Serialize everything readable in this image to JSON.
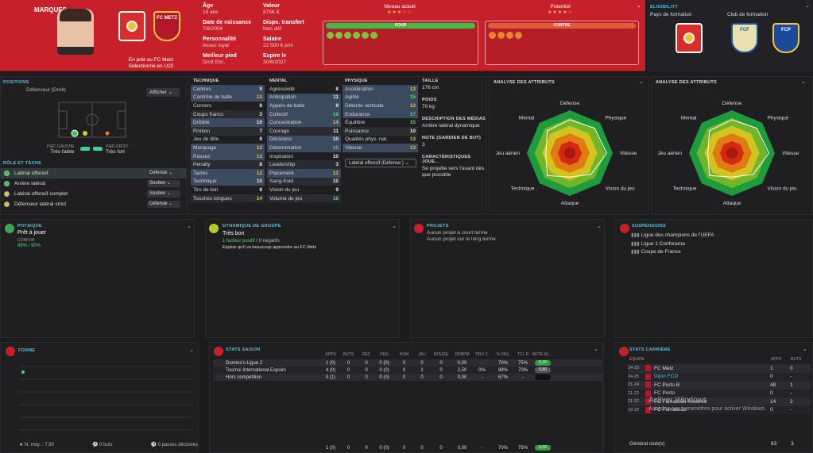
{
  "player": {
    "name": "MARQUES",
    "age_label": "Âge",
    "age": "19 ans",
    "dob_label": "Date de naissance",
    "dob": "7/8/2004",
    "personality_label": "Personnalité",
    "personality": "Assez loyal",
    "foot_label": "Meilleur pied",
    "foot": "Droit Exc.",
    "value_label": "Valeur",
    "value": "875K €",
    "transfer_label": "Dispo. transfert",
    "transfer": "Non déf.",
    "salary_label": "Salaire",
    "salary": "22 500 € p/m",
    "expires_label": "Expire le",
    "expires": "30/6/2027",
    "loan_line1": "En prêt au FC Metz",
    "loan_line2": "Sélectionné en U20",
    "club_abbr": "FC METZ"
  },
  "levels": {
    "current_label": "Niveau actuel",
    "potential_label": "Potentiel",
    "current_stars": "★★★☆☆",
    "potential_stars": "★★★★☆",
    "pour": "POUR",
    "contre": "CONTRE"
  },
  "elig": {
    "title": "ELIGIBILITY",
    "country_label": "Pays de formation",
    "club_label": "Club de formation"
  },
  "positions": {
    "title": "POSITIONS",
    "role": "Défenseur (Droit)",
    "show_btn": "Afficher",
    "weak_label": "PIED GAUCHE",
    "weak": "Très faible",
    "strong_label": "PIED DROIT",
    "strong": "Très fort"
  },
  "roles": {
    "title": "RÔLE ET TÂCHE",
    "items": [
      {
        "name": "Latéral offensif",
        "duty": "Défense",
        "color": "#3fc64f"
      },
      {
        "name": "Arrière latéral",
        "duty": "Soutien",
        "color": "#3fc64f"
      },
      {
        "name": "Latéral offensif complet",
        "duty": "Soutien",
        "color": "#d8c63a"
      },
      {
        "name": "Défenseur latéral strict",
        "duty": "Défense",
        "color": "#d8c63a"
      }
    ]
  },
  "technique": {
    "title": "TECHNIQUE",
    "rows": [
      [
        "Centres",
        "9"
      ],
      [
        "Contrôle de balle",
        "13"
      ],
      [
        "Corners",
        "8"
      ],
      [
        "Coups francs",
        "3"
      ],
      [
        "Dribble",
        "10"
      ],
      [
        "Finition",
        "7"
      ],
      [
        "Jeu de tête",
        "9"
      ],
      [
        "Marquage",
        "12"
      ],
      [
        "Passes",
        "13"
      ],
      [
        "Penalty",
        "8"
      ],
      [
        "Tacles",
        "12"
      ],
      [
        "Technique",
        "10"
      ],
      [
        "Tirs de loin",
        "8"
      ],
      [
        "Touches longues",
        "14"
      ]
    ]
  },
  "mental": {
    "title": "MENTAL",
    "rows": [
      [
        "Agressivité",
        "8"
      ],
      [
        "Anticipation",
        "11"
      ],
      [
        "Appels de balle",
        "8"
      ],
      [
        "Collectif",
        "18"
      ],
      [
        "Concentration",
        "14"
      ],
      [
        "Courage",
        "11"
      ],
      [
        "Décisions",
        "10"
      ],
      [
        "Détermination",
        "15"
      ],
      [
        "Inspiration",
        "10"
      ],
      [
        "Leadership",
        "3"
      ],
      [
        "Placement",
        "12"
      ],
      [
        "Sang-froid",
        "10"
      ],
      [
        "Vision du jeu",
        "9"
      ],
      [
        "Volume de jeu",
        "18"
      ]
    ]
  },
  "physique": {
    "title": "PHYSIQUE",
    "rows": [
      [
        "Accélération",
        "13"
      ],
      [
        "Agilité",
        "15"
      ],
      [
        "Détente verticale",
        "12"
      ],
      [
        "Endurance",
        "17"
      ],
      [
        "Équilibre",
        "15"
      ],
      [
        "Puissance",
        "10"
      ],
      [
        "Qualités phys. nat.",
        "13"
      ],
      [
        "Vitesse",
        "13"
      ]
    ],
    "role_select": "Latéral offensif (Défense )"
  },
  "details": {
    "height_label": "TAILLE",
    "height": "176 cm",
    "weight_label": "POIDS",
    "weight": "70 kg",
    "media_label": "DESCRIPTION DES MÉDIAS",
    "media": "Arrière latéral dynamique",
    "gk_label": "NOTE (GARDIEN DE BUT)",
    "gk": "3",
    "traits_label": "CARACTÉRISTIQUES JOUE...",
    "traits": "Se projette vers l'avant dès que possible"
  },
  "radar": {
    "title": "ANALYSE DES ATTRIBUTS",
    "labels": [
      "Défense",
      "Physique",
      "Vitesse",
      "Vision du jeu",
      "Attaque",
      "Technique",
      "Jeu aérien",
      "Mental"
    ],
    "values": [
      0.78,
      0.82,
      0.86,
      0.7,
      0.56,
      0.74,
      0.56,
      0.74
    ]
  },
  "condition": {
    "title": "PHYSIQUE",
    "status": "Prêt à jouer",
    "sub": "CONFOR",
    "pct": "99% / 90%"
  },
  "dynamics": {
    "title": "DYNAMIQUE DE GROUPE",
    "status": "Très bon",
    "pos": "1 facteur positif",
    "neg": "/ 0 négatifs",
    "note": "Espère qu'il va beaucoup apprendre au FC Metz"
  },
  "projects": {
    "title": "PROJETS",
    "short": "Aucun projet à court terme",
    "long": "Aucun projet sur le long terme"
  },
  "susp": {
    "title": "SUSPENSIONS",
    "items": [
      "Ligue des champions de l'UEFA",
      "Ligue 1 Conforama",
      "Coupe de France"
    ]
  },
  "form": {
    "title": "FORME",
    "avg": "N. moy. : 7,90",
    "goals": "0 buts",
    "assists": "0 passes décisives"
  },
  "season": {
    "title": "STATS SAISON",
    "headers": [
      "APPS",
      "BUTS",
      "DÉC",
      "PEN",
      "HDM",
      "JAU",
      "ROUGE",
      "DRBPM",
      "TIRS C.",
      "% PAS.",
      "TCL R",
      "NOTE M..."
    ],
    "rows": [
      {
        "comp": "Domino's Ligue 2",
        "vals": [
          "1 (0)",
          "0",
          "0",
          "0 (0)",
          "0",
          "0",
          "0",
          "0,00",
          "-",
          "70%",
          "75%"
        ],
        "note": "6,20"
      },
      {
        "comp": "Tournoi International Espoirs",
        "vals": [
          "4 (0)",
          "0",
          "0",
          "0 (0)",
          "0",
          "1",
          "0",
          "2,50",
          "0%",
          "88%",
          "70%"
        ],
        "note": "6,80"
      },
      {
        "comp": "Hors compétition",
        "vals": [
          "0 (1)",
          "0",
          "0",
          "0 (0)",
          "0",
          "0",
          "0",
          "0,00",
          "-",
          "67%",
          "-"
        ],
        "note": ""
      }
    ],
    "total": {
      "vals": [
        "1 (0)",
        "0",
        "0",
        "0 (0)",
        "0",
        "0",
        "0",
        "0,00",
        "-",
        "70%",
        "75%"
      ],
      "note": "6,20"
    }
  },
  "career": {
    "title": "STATS CARRIÈRE",
    "team_label": "ÉQUIPE",
    "apps_label": "APPS",
    "goals_label": "BUTS",
    "rows": [
      [
        "24-25",
        "FC Metz",
        "1",
        "0"
      ],
      [
        "24-25",
        "Dijon FCO",
        "0",
        "-"
      ],
      [
        "21-24",
        "FC Porto B",
        "48",
        "1"
      ],
      [
        "21-22",
        "FC Porto",
        "0",
        "-"
      ],
      [
        "21-22",
        "FC Famalicão Reserve",
        "14",
        "2"
      ],
      [
        "19-22",
        "FC Famalicão",
        "0",
        "-"
      ]
    ],
    "total_label": "Général club(s)",
    "total_apps": "63",
    "total_goals": "3"
  },
  "watermark": {
    "line1": "Activer Windows",
    "line2": "Accédez aux paramètres pour activer Windows."
  }
}
